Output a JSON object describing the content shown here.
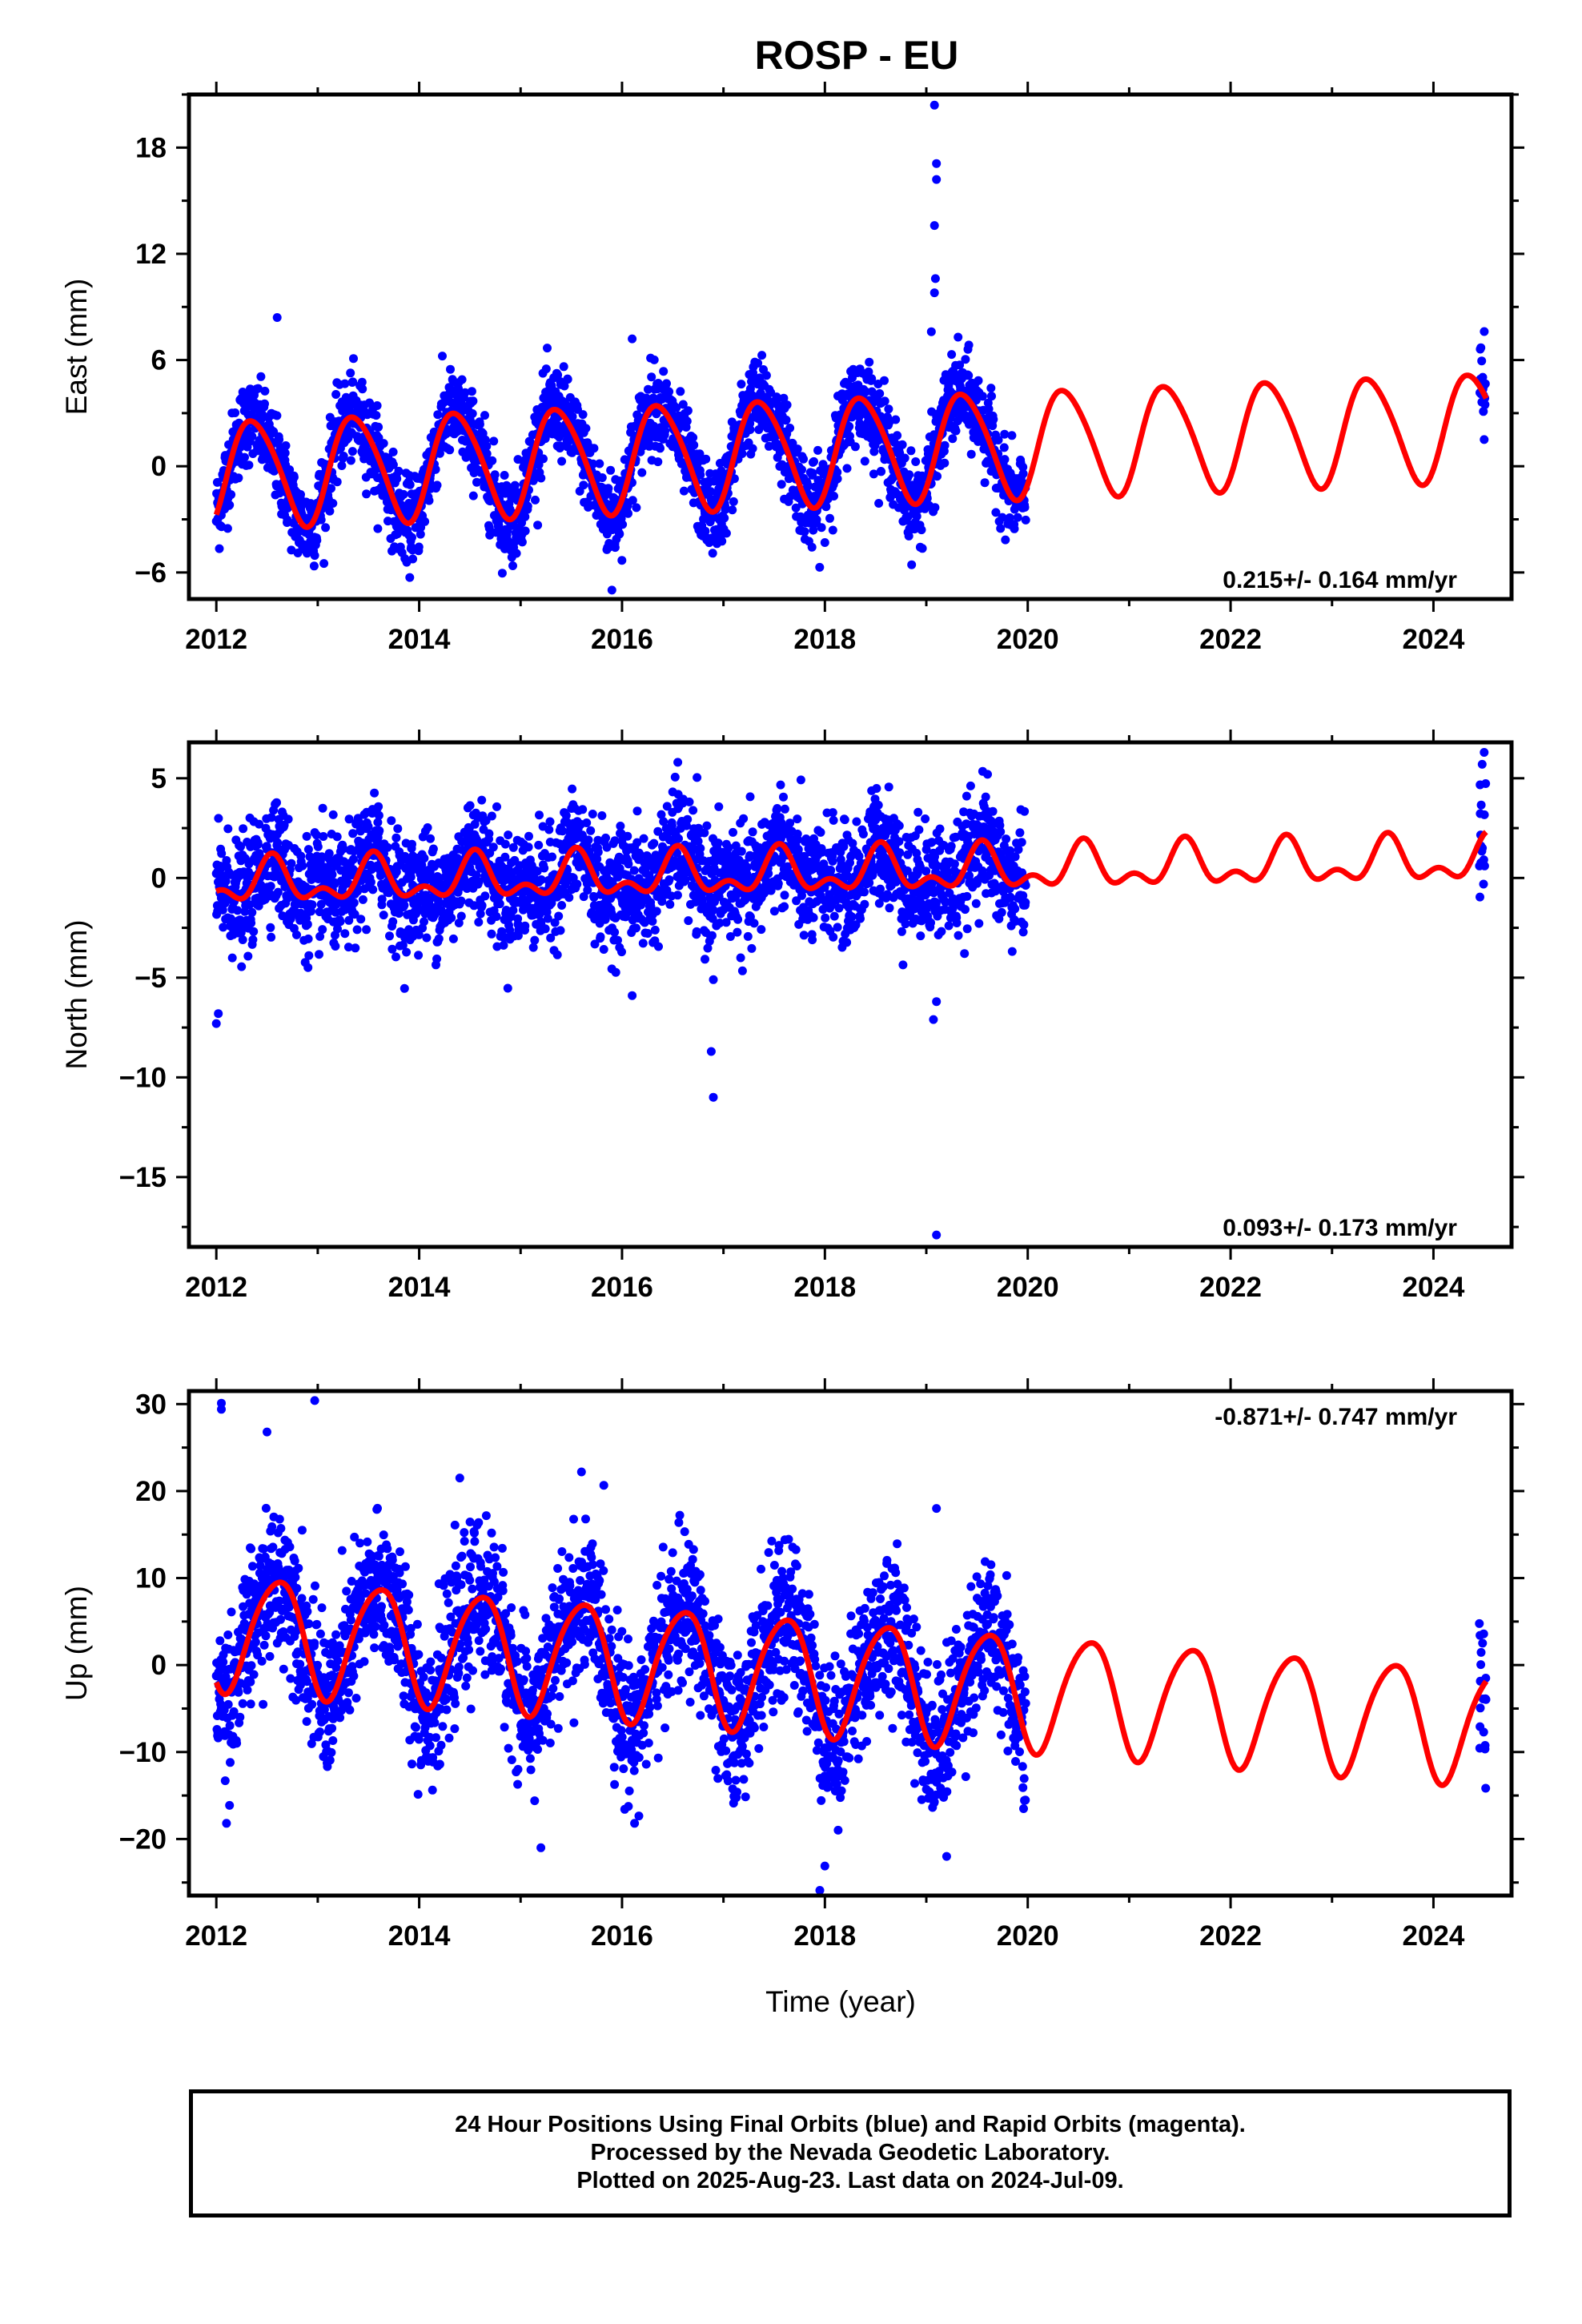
{
  "title": "ROSP - EU",
  "footer": {
    "line1": "24 Hour Positions Using Final Orbits (blue) and Rapid Orbits (magenta).",
    "line2": "Processed by the Nevada Geodetic Laboratory.",
    "line3": "Plotted on 2025-Aug-23. Last data on 2024-Jul-09."
  },
  "colors": {
    "observations": "#0000ff",
    "model": "#ff0000",
    "frame": "#000000"
  },
  "chart_data": [
    {
      "type": "scatter",
      "ylabel": "East (mm)",
      "xlabel": "",
      "xlim": [
        2011.73,
        2024.77
      ],
      "ylim": [
        -7.5,
        21
      ],
      "xticks": [
        2012,
        2014,
        2016,
        2018,
        2020,
        2022,
        2024
      ],
      "yticks": [
        -6,
        0,
        6,
        12,
        18
      ],
      "rate": "0.215+/- 0.164 mm/yr",
      "rate_position": "bottom-right",
      "model": {
        "name": "",
        "offset": -0.4,
        "trend_mm_per_yr": 0.215,
        "annual_amplitude": 3.0,
        "annual_peak_year_fraction": 0.37,
        "semiannual_amplitude": 0.35,
        "semiannual_phase": 0.2
      },
      "observations": {
        "start": 2012.0,
        "end": 2019.98,
        "scatter_sd_mm": 1.2,
        "late_points_start": 2024.45,
        "late_points_end": 2024.52,
        "outliers": [
          [
            2019.08,
            20.4
          ],
          [
            2019.1,
            17.1
          ],
          [
            2019.1,
            16.2
          ],
          [
            2019.08,
            13.6
          ],
          [
            2019.09,
            10.6
          ],
          [
            2019.08,
            9.8
          ],
          [
            2015.9,
            -7.0
          ],
          [
            2012.6,
            8.4
          ],
          [
            2016.1,
            7.2
          ],
          [
            2019.05,
            7.6
          ]
        ]
      }
    },
    {
      "type": "scatter",
      "ylabel": "North (mm)",
      "xlabel": "",
      "xlim": [
        2011.73,
        2024.77
      ],
      "ylim": [
        -18.5,
        6.8
      ],
      "xticks": [
        2012,
        2014,
        2016,
        2018,
        2020,
        2022,
        2024
      ],
      "yticks": [
        -15,
        -10,
        -5,
        0,
        5
      ],
      "rate": "0.093+/- 0.173 mm/yr",
      "rate_position": "bottom-right",
      "model": {
        "name": "",
        "offset": -0.3,
        "trend_mm_per_yr": 0.093,
        "annual_amplitude": 0.9,
        "annual_peak_year_fraction": 0.55,
        "semiannual_amplitude": 0.6,
        "semiannual_phase": 0.05
      },
      "observations": {
        "start": 2012.0,
        "end": 2019.98,
        "scatter_sd_mm": 1.4,
        "late_points_start": 2024.45,
        "late_points_end": 2024.52,
        "outliers": [
          [
            2019.1,
            -17.9
          ],
          [
            2016.9,
            -11.0
          ],
          [
            2016.88,
            -8.7
          ],
          [
            2016.9,
            -5.1
          ],
          [
            2012.0,
            -7.3
          ],
          [
            2012.02,
            -6.8
          ],
          [
            2019.07,
            -7.1
          ],
          [
            2019.1,
            -6.2
          ],
          [
            2016.1,
            -5.9
          ],
          [
            2016.55,
            5.8
          ],
          [
            2024.5,
            6.3
          ],
          [
            2024.48,
            5.7
          ]
        ]
      }
    },
    {
      "type": "scatter",
      "ylabel": "Up (mm)",
      "xlabel": "Time (year)",
      "xlim": [
        2011.73,
        2024.77
      ],
      "ylim": [
        -26.5,
        31.5
      ],
      "xticks": [
        2012,
        2014,
        2016,
        2018,
        2020,
        2022,
        2024
      ],
      "yticks": [
        -20,
        -10,
        0,
        10,
        20,
        30
      ],
      "rate": "-0.871+/- 0.747 mm/yr",
      "rate_position": "top-right",
      "model": {
        "name": "",
        "offset": 4.0,
        "trend_mm_per_yr": -0.871,
        "annual_amplitude": 6.6,
        "annual_peak_year_fraction": 0.6,
        "semiannual_amplitude": 0.8,
        "semiannual_phase": 0.3
      },
      "observations": {
        "start": 2012.0,
        "end": 2019.98,
        "scatter_sd_mm": 4.2,
        "late_points_start": 2024.45,
        "late_points_end": 2024.52,
        "outliers": [
          [
            2012.05,
            30.1
          ],
          [
            2012.05,
            29.4
          ],
          [
            2012.97,
            30.4
          ],
          [
            2012.5,
            26.8
          ],
          [
            2012.1,
            -18.2
          ],
          [
            2015.2,
            -21.0
          ],
          [
            2017.95,
            -25.9
          ],
          [
            2018.0,
            -23.1
          ],
          [
            2019.2,
            -22.0
          ],
          [
            2019.1,
            18.0
          ],
          [
            2014.4,
            21.5
          ],
          [
            2015.6,
            22.2
          ]
        ]
      }
    }
  ]
}
